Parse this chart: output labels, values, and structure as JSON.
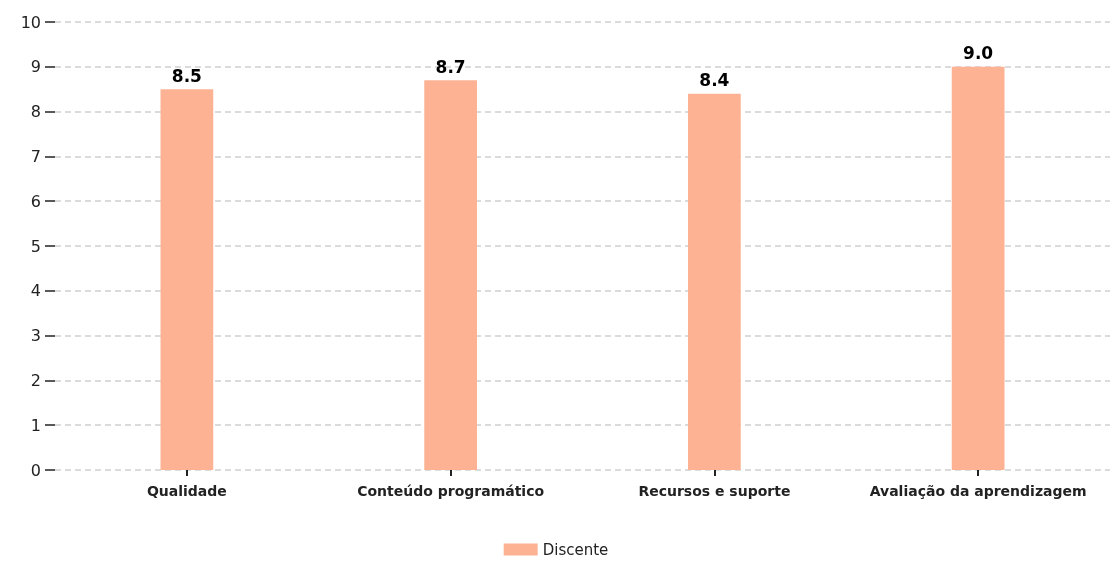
{
  "chart_data": {
    "type": "bar",
    "categories": [
      "Qualidade",
      "Conteúdo programático",
      "Recursos e suporte",
      "Avaliação da aprendizagem"
    ],
    "series": [
      {
        "name": "Discente",
        "color": "#fdb393",
        "values": [
          8.5,
          8.7,
          8.4,
          9.0
        ],
        "value_labels": [
          "8.5",
          "8.7",
          "8.4",
          "9.0"
        ]
      }
    ],
    "ylim": [
      0,
      10
    ],
    "yticks": [
      0,
      1,
      2,
      3,
      4,
      5,
      6,
      7,
      8,
      9,
      10
    ],
    "grid": "y",
    "legend": "bottom"
  }
}
